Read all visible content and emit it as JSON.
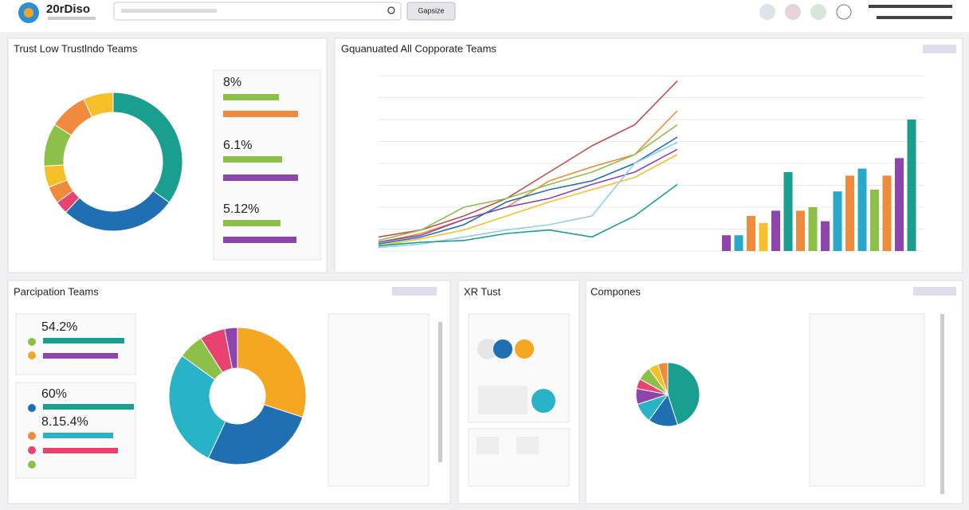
{
  "header": {
    "brand": "20rDiso",
    "button": "Gapsize"
  },
  "panels": [
    {
      "title": "Trust Low Trustlndo Teams",
      "stats": [
        "8%",
        "6.1%",
        "5.12%"
      ],
      "donut": {
        "values": [
          35,
          27,
          3,
          4,
          5,
          10,
          9,
          7
        ],
        "colors": [
          "#1a9e8f",
          "#1f6fb2",
          "#e8436e",
          "#f08a3c",
          "#f5c02a",
          "#8dc049",
          "#f08a3c",
          "#f5c02a"
        ]
      }
    },
    {
      "title": "Gquanuated All Copporate Teams",
      "ylim": [
        0,
        100
      ],
      "yticks": [
        0,
        12.5,
        25,
        37.5,
        50,
        62.5,
        75,
        87.5,
        100
      ],
      "series": [
        {
          "color": "#c0504d",
          "values": [
            8,
            12,
            20,
            30,
            45,
            60,
            72,
            97
          ]
        },
        {
          "color": "#f08a3c",
          "values": [
            5,
            10,
            18,
            25,
            40,
            48,
            55,
            80
          ]
        },
        {
          "color": "#8dc049",
          "values": [
            6,
            12,
            25,
            30,
            38,
            45,
            55,
            72
          ]
        },
        {
          "color": "#1f6fb2",
          "values": [
            4,
            8,
            15,
            28,
            35,
            40,
            50,
            65
          ]
        },
        {
          "color": "#8e44ad",
          "values": [
            5,
            9,
            18,
            25,
            30,
            38,
            45,
            58
          ]
        },
        {
          "color": "#f5c02a",
          "values": [
            3,
            7,
            12,
            20,
            28,
            35,
            42,
            55
          ]
        },
        {
          "color": "#8fd0e8",
          "values": [
            2,
            4,
            8,
            12,
            15,
            20,
            50,
            62
          ]
        },
        {
          "color": "#1a9e8f",
          "values": [
            3,
            5,
            6,
            10,
            12,
            8,
            20,
            38
          ]
        }
      ],
      "bars": {
        "values": [
          9,
          9,
          20,
          16,
          23,
          45,
          23,
          25,
          17,
          34,
          43,
          47,
          35,
          43,
          53,
          75
        ],
        "colors": [
          "#8e44ad",
          "#29a8c9",
          "#f08a3c",
          "#f5c02a",
          "#8e44ad",
          "#1a9e8f",
          "#f08a3c",
          "#8dc049",
          "#8e44ad",
          "#29a8c9",
          "#f08a3c",
          "#29a8c9",
          "#8dc049",
          "#f08a3c",
          "#8e44ad",
          "#1a9e8f"
        ]
      }
    },
    {
      "title": "Parcipation Teams",
      "stats": [
        "54.2%",
        "60%",
        "8.15.4%"
      ],
      "donut": {
        "values": [
          30,
          27,
          28,
          6,
          6,
          3
        ],
        "colors": [
          "#f5a623",
          "#1f6fb2",
          "#29b3c9",
          "#8dc049",
          "#e8436e",
          "#8e44ad"
        ]
      }
    },
    {
      "title": "XR Tust"
    },
    {
      "title": "Compones",
      "pie": {
        "values": [
          45,
          15,
          10,
          8,
          5,
          7,
          5,
          5
        ],
        "colors": [
          "#1a9e8f",
          "#1f6fb2",
          "#29b3c9",
          "#8e44ad",
          "#e8436e",
          "#8dc049",
          "#f5c02a",
          "#f08a3c"
        ]
      }
    }
  ]
}
